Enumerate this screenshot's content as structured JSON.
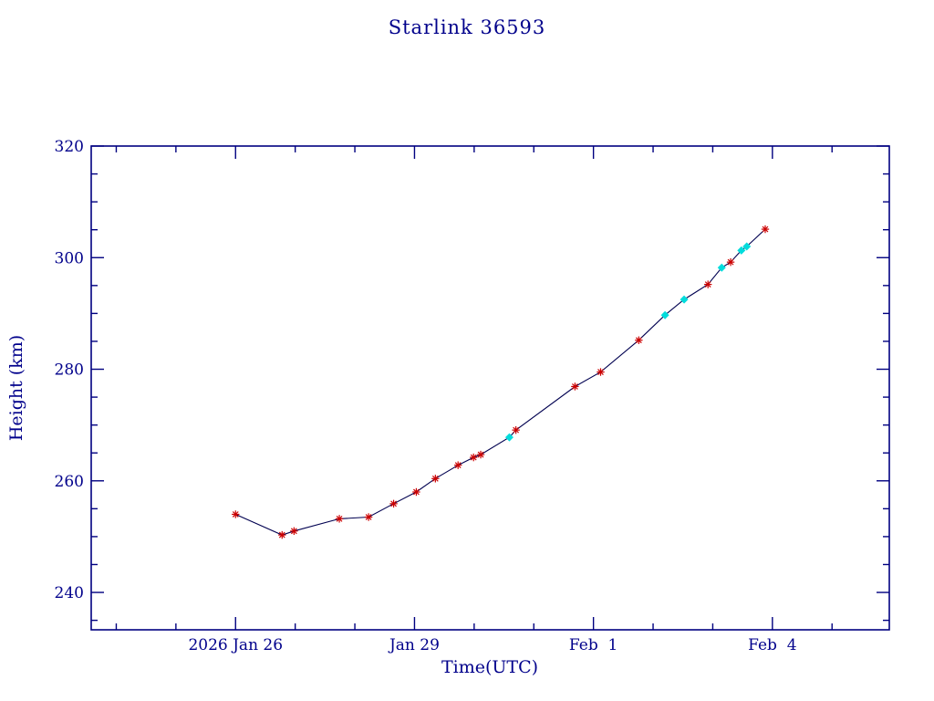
{
  "page": {
    "background": "#ffffff"
  },
  "chart_data": {
    "type": "line",
    "title": "Starlink 36593",
    "xlabel": "Time(UTC)",
    "ylabel": "Height (km)",
    "x_axis": {
      "unit": "days since 2026 Jan 26 00:00 UTC",
      "xlim_days": [
        -2.42,
        10.96
      ],
      "major_ticks": [
        {
          "day": 0,
          "label": "2026 Jan 26"
        },
        {
          "day": 3,
          "label": "Jan 29"
        },
        {
          "day": 6,
          "label": "Feb  1"
        },
        {
          "day": 9,
          "label": "Feb  4"
        }
      ],
      "minor_tick_interval_days": 1
    },
    "y_axis": {
      "ylim": [
        233.3,
        320
      ],
      "major_ticks": [
        240,
        260,
        280,
        300,
        320
      ],
      "minor_tick_interval": 5
    },
    "series": [
      {
        "name": "height",
        "line_color": "#000050",
        "points": [
          {
            "day": 0.0,
            "height_km": 254.0,
            "marker": "red-asterisk"
          },
          {
            "day": 0.78,
            "height_km": 250.3,
            "marker": "red-asterisk"
          },
          {
            "day": 0.98,
            "height_km": 251.0,
            "marker": "red-asterisk"
          },
          {
            "day": 1.74,
            "height_km": 253.2,
            "marker": "red-asterisk"
          },
          {
            "day": 2.23,
            "height_km": 253.5,
            "marker": "red-asterisk"
          },
          {
            "day": 2.65,
            "height_km": 255.9,
            "marker": "red-asterisk"
          },
          {
            "day": 3.03,
            "height_km": 258.0,
            "marker": "red-asterisk"
          },
          {
            "day": 3.35,
            "height_km": 260.4,
            "marker": "red-asterisk"
          },
          {
            "day": 3.73,
            "height_km": 262.8,
            "marker": "red-asterisk"
          },
          {
            "day": 3.99,
            "height_km": 264.2,
            "marker": "red-asterisk"
          },
          {
            "day": 4.11,
            "height_km": 264.7,
            "marker": "red-asterisk"
          },
          {
            "day": 4.59,
            "height_km": 267.8,
            "marker": "cyan-diamond"
          },
          {
            "day": 4.7,
            "height_km": 269.1,
            "marker": "red-asterisk"
          },
          {
            "day": 5.69,
            "height_km": 276.9,
            "marker": "red-asterisk"
          },
          {
            "day": 6.12,
            "height_km": 279.5,
            "marker": "red-asterisk"
          },
          {
            "day": 6.76,
            "height_km": 285.2,
            "marker": "red-asterisk"
          },
          {
            "day": 7.2,
            "height_km": 289.7,
            "marker": "cyan-diamond"
          },
          {
            "day": 7.52,
            "height_km": 292.5,
            "marker": "cyan-diamond"
          },
          {
            "day": 7.92,
            "height_km": 295.2,
            "marker": "red-asterisk"
          },
          {
            "day": 8.15,
            "height_km": 298.2,
            "marker": "cyan-diamond"
          },
          {
            "day": 8.3,
            "height_km": 299.2,
            "marker": "red-asterisk"
          },
          {
            "day": 8.48,
            "height_km": 301.3,
            "marker": "cyan-diamond"
          },
          {
            "day": 8.57,
            "height_km": 302.0,
            "marker": "cyan-diamond"
          },
          {
            "day": 8.88,
            "height_km": 305.1,
            "marker": "red-asterisk"
          }
        ]
      }
    ],
    "marker_colors": {
      "red-asterisk": "#cc0000",
      "cyan-diamond": "#00dcdc"
    },
    "colors": {
      "axis": "#000080",
      "text": "#00008b"
    },
    "grid": false,
    "legend": false
  }
}
